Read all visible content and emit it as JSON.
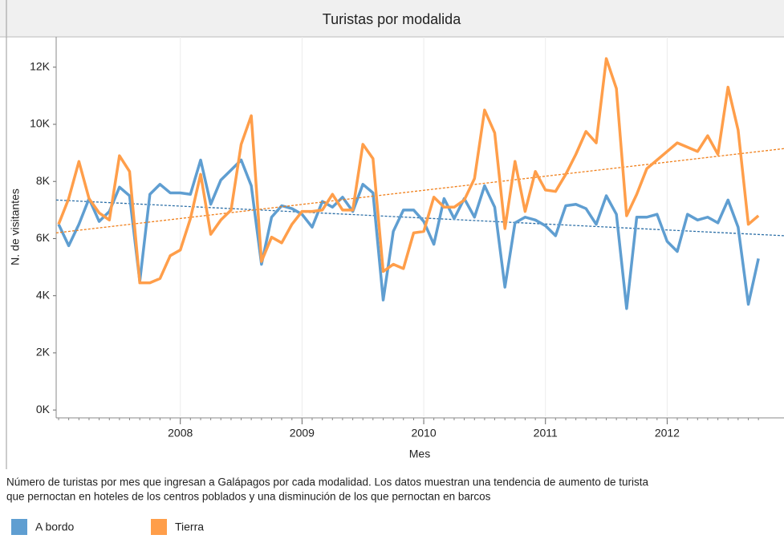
{
  "chart_data": {
    "type": "line",
    "title": "Turistas por modalida",
    "x_label": "Mes",
    "y_label": "N. de visitantes",
    "caption": [
      "Número de turistas por mes que ingresan a Galápagos por cada modalidad. Los datos muestran una tendencia de aumento de turista",
      "que pernoctan en hoteles de los centros poblados y una disminución de los que pernoctan en barcos"
    ],
    "grid": true,
    "xlim": [
      2006.98,
      2012.96
    ],
    "xticks": [
      2008,
      2009,
      2010,
      2011,
      2012
    ],
    "ylim": [
      -220,
      13060
    ],
    "yticks": [
      {
        "value": 0,
        "label": "0K"
      },
      {
        "value": 2000,
        "label": "2K"
      },
      {
        "value": 4000,
        "label": "4K"
      },
      {
        "value": 6000,
        "label": "6K"
      },
      {
        "value": 8000,
        "label": "8K"
      },
      {
        "value": 10000,
        "label": "10K"
      },
      {
        "value": 12000,
        "label": "12K"
      }
    ],
    "x": [
      2007,
      2007.083,
      2007.167,
      2007.25,
      2007.333,
      2007.417,
      2007.5,
      2007.583,
      2007.667,
      2007.75,
      2007.833,
      2007.917,
      2008,
      2008.083,
      2008.167,
      2008.25,
      2008.333,
      2008.417,
      2008.5,
      2008.583,
      2008.667,
      2008.75,
      2008.833,
      2008.917,
      2009,
      2009.083,
      2009.167,
      2009.25,
      2009.333,
      2009.417,
      2009.5,
      2009.583,
      2009.667,
      2009.75,
      2009.833,
      2009.917,
      2010,
      2010.083,
      2010.167,
      2010.25,
      2010.333,
      2010.417,
      2010.5,
      2010.583,
      2010.667,
      2010.75,
      2010.833,
      2010.917,
      2011,
      2011.083,
      2011.167,
      2011.25,
      2011.333,
      2011.417,
      2011.5,
      2011.583,
      2011.667,
      2011.75,
      2011.833,
      2011.917,
      2012,
      2012.083,
      2012.167,
      2012.25,
      2012.333,
      2012.417,
      2012.5,
      2012.583,
      2012.667,
      2012.75
    ],
    "series": [
      {
        "name": "A bordo",
        "color": "#5f9ed1",
        "trend_color": "#2b6ea6",
        "trend": [
          7350,
          6100
        ],
        "values": [
          6500,
          5750,
          6500,
          7400,
          6600,
          6950,
          7800,
          7500,
          4500,
          7550,
          7900,
          7600,
          7600,
          7550,
          8750,
          7200,
          8050,
          8400,
          8750,
          7850,
          5100,
          6750,
          7150,
          7050,
          6850,
          6400,
          7300,
          7100,
          7450,
          6950,
          7900,
          7600,
          3850,
          6250,
          7000,
          7000,
          6600,
          5800,
          7400,
          6700,
          7400,
          6750,
          7850,
          7100,
          4300,
          6550,
          6750,
          6650,
          6450,
          6100,
          7150,
          7200,
          7050,
          6500,
          7500,
          6850,
          3550,
          6750,
          6750,
          6850,
          5900,
          5550,
          6850,
          6650,
          6750,
          6550,
          7350,
          6400,
          3700,
          5300
        ]
      },
      {
        "name": "Tierra",
        "color": "#ff9e4a",
        "trend_color": "#f07f1a",
        "trend": [
          6200,
          9150
        ],
        "values": [
          6500,
          7400,
          8700,
          7400,
          6900,
          6650,
          8900,
          8350,
          4450,
          4450,
          4600,
          5400,
          5600,
          6700,
          8250,
          6150,
          6650,
          7000,
          9300,
          10300,
          5200,
          6050,
          5850,
          6500,
          6950,
          6950,
          7000,
          7550,
          7000,
          7000,
          9300,
          8800,
          4850,
          5100,
          4950,
          6200,
          6250,
          7450,
          7100,
          7100,
          7350,
          8100,
          10500,
          9700,
          6350,
          8700,
          6950,
          8350,
          7700,
          7650,
          8250,
          8950,
          9750,
          9350,
          12300,
          11250,
          6800,
          7550,
          8450,
          8750,
          9050,
          9350,
          9200,
          9050,
          9600,
          8950,
          11300,
          9800,
          6500,
          6800
        ]
      }
    ]
  }
}
